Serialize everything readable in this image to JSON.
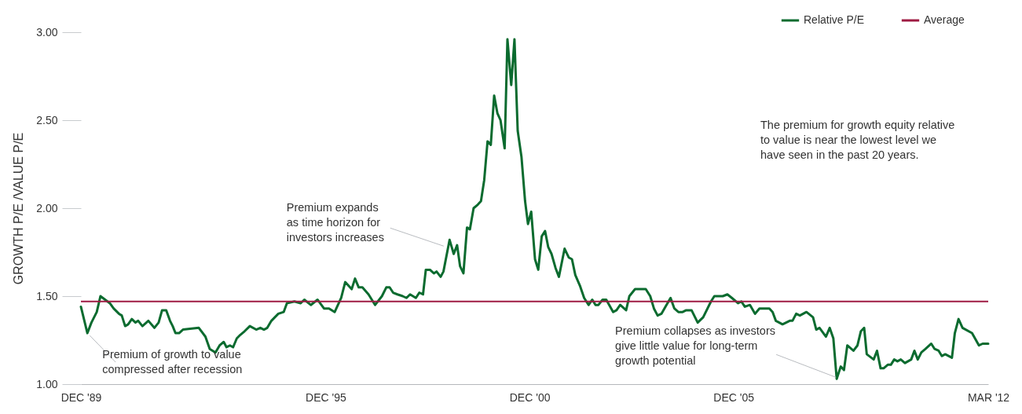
{
  "chart_data": {
    "type": "line",
    "ylabel": "GROWTH P/E /VALUE P/E",
    "x": [
      "1989-12-01",
      "1990-01-28",
      "1990-03-05",
      "1990-04-22",
      "1990-05-25",
      "1990-08-17",
      "1990-09-20",
      "1990-11-07",
      "1990-12-02",
      "1991-01-01",
      "1991-01-28",
      "1991-03-02",
      "1991-04-04",
      "1991-04-28",
      "1991-06-05",
      "1991-07-28",
      "1991-09-20",
      "1991-10-28",
      "1991-11-28",
      "1992-01-04",
      "1992-02-07",
      "1992-03-02",
      "1992-03-27",
      "1992-04-28",
      "1992-06-02",
      "1992-10-22",
      "1992-12-20",
      "1993-01-28",
      "1993-03-20",
      "1993-04-26",
      "1993-06-02",
      "1993-06-27",
      "1993-07-28",
      "1993-08-25",
      "1993-09-27",
      "1993-10-28",
      "1993-12-05",
      "1994-01-22",
      "1994-03-20",
      "1994-04-26",
      "1994-05-28",
      "1994-06-27",
      "1994-08-03",
      "1994-10-04",
      "1994-11-21",
      "1994-12-20",
      "1995-02-25",
      "1995-04-22",
      "1995-05-25",
      "1995-07-22",
      "1995-09-20",
      "1995-11-17",
      "1996-01-01",
      "1996-02-21",
      "1996-04-19",
      "1996-05-25",
      "1996-07-22",
      "1996-08-21",
      "1996-09-23",
      "1996-10-26",
      "1996-12-20",
      "1997-02-17",
      "1997-04-19",
      "1997-05-28",
      "1997-06-27",
      "1997-07-28",
      "1997-09-05",
      "1997-10-22",
      "1997-11-25",
      "1997-12-27",
      "1998-02-17",
      "1998-03-20",
      "1998-04-22",
      "1998-05-17",
      "1998-06-23",
      "1998-07-28",
      "1998-08-21",
      "1998-09-27",
      "1998-10-22",
      "1998-12-16",
      "1999-01-22",
      "1999-02-21",
      "1999-03-20",
      "1999-04-19",
      "1999-05-21",
      "1999-06-16",
      "1999-07-19",
      "1999-08-25",
      "1999-09-23",
      "1999-10-22",
      "1999-11-21",
      "1999-12-20",
      "2000-01-19",
      "2000-02-17",
      "2000-03-16",
      "2000-04-22",
      "2000-05-17",
      "2000-06-20",
      "2000-07-19",
      "2000-08-17",
      "2000-09-20",
      "2000-10-22",
      "2000-11-17",
      "2000-12-16",
      "2001-01-19",
      "2001-02-17",
      "2001-03-20",
      "2001-04-19",
      "2001-05-17",
      "2001-06-16",
      "2001-07-22",
      "2001-08-21",
      "2001-10-11",
      "2001-11-17",
      "2001-12-16",
      "2002-01-15",
      "2002-02-25",
      "2002-04-04",
      "2002-05-14",
      "2002-06-16",
      "2002-07-15",
      "2002-08-10",
      "2002-09-16",
      "2002-10-19",
      "2002-12-20",
      "2003-01-19",
      "2003-02-21",
      "2003-04-15",
      "2003-05-14",
      "2003-07-04",
      "2003-10-08",
      "2003-11-17",
      "2003-12-20",
      "2004-01-22",
      "2004-02-25",
      "2004-04-01",
      "2004-05-17",
      "2004-06-20",
      "2004-07-26",
      "2004-09-02",
      "2004-10-04",
      "2004-11-21",
      "2005-01-15",
      "2005-03-05",
      "2005-05-14",
      "2005-06-13",
      "2005-08-28",
      "2005-10-08",
      "2005-11-17",
      "2006-01-11",
      "2006-02-10",
      "2006-03-13",
      "2006-04-28",
      "2006-06-13",
      "2006-07-22",
      "2006-10-19",
      "2006-11-17",
      "2006-12-16",
      "2007-02-14",
      "2007-04-19",
      "2007-05-14",
      "2007-06-16",
      "2007-07-19",
      "2007-09-16",
      "2007-11-14",
      "2007-12-13",
      "2008-01-11",
      "2008-03-09",
      "2008-04-11",
      "2008-05-14",
      "2008-06-13",
      "2008-07-19",
      "2008-08-17",
      "2008-09-16",
      "2008-11-10",
      "2008-12-16",
      "2009-01-15",
      "2009-02-14",
      "2009-03-09",
      "2009-05-10",
      "2009-06-09",
      "2009-07-11",
      "2009-08-07",
      "2009-09-13",
      "2009-10-11",
      "2009-11-10",
      "2009-12-09",
      "2010-01-08",
      "2010-02-14",
      "2010-04-11",
      "2010-05-10",
      "2010-06-09",
      "2010-07-11",
      "2010-08-17",
      "2010-10-08",
      "2010-11-07",
      "2010-12-13",
      "2011-01-11",
      "2011-02-10",
      "2011-04-11",
      "2011-05-07",
      "2011-06-09",
      "2011-07-15",
      "2011-10-08",
      "2011-12-09",
      "2012-01-11",
      "2012-03-01"
    ],
    "series": [
      {
        "name": "Relative P/E",
        "color": "#0b6b2f",
        "values": [
          1.44,
          1.29,
          1.35,
          1.41,
          1.5,
          1.46,
          1.43,
          1.4,
          1.39,
          1.33,
          1.34,
          1.37,
          1.35,
          1.36,
          1.33,
          1.36,
          1.32,
          1.35,
          1.42,
          1.42,
          1.36,
          1.33,
          1.29,
          1.29,
          1.31,
          1.32,
          1.27,
          1.2,
          1.18,
          1.22,
          1.24,
          1.21,
          1.22,
          1.21,
          1.26,
          1.28,
          1.3,
          1.33,
          1.31,
          1.32,
          1.31,
          1.32,
          1.36,
          1.4,
          1.41,
          1.46,
          1.47,
          1.46,
          1.48,
          1.45,
          1.48,
          1.43,
          1.43,
          1.41,
          1.49,
          1.58,
          1.54,
          1.6,
          1.55,
          1.55,
          1.51,
          1.45,
          1.5,
          1.55,
          1.55,
          1.52,
          1.51,
          1.5,
          1.49,
          1.51,
          1.49,
          1.52,
          1.51,
          1.65,
          1.65,
          1.63,
          1.64,
          1.61,
          1.64,
          1.82,
          1.74,
          1.79,
          1.67,
          1.63,
          1.89,
          1.88,
          2.0,
          2.02,
          2.04,
          2.16,
          2.38,
          2.36,
          2.64,
          2.54,
          2.5,
          2.34,
          2.96,
          2.7,
          2.96,
          2.44,
          2.29,
          2.04,
          1.91,
          1.98,
          1.71,
          1.65,
          1.84,
          1.87,
          1.78,
          1.74,
          1.66,
          1.61,
          1.77,
          1.72,
          1.71,
          1.62,
          1.56,
          1.49,
          1.45,
          1.48,
          1.45,
          1.45,
          1.48,
          1.48,
          1.41,
          1.42,
          1.45,
          1.42,
          1.5,
          1.54,
          1.54,
          1.5,
          1.43,
          1.39,
          1.4,
          1.44,
          1.49,
          1.43,
          1.41,
          1.41,
          1.42,
          1.42,
          1.35,
          1.38,
          1.47,
          1.5,
          1.5,
          1.51,
          1.49,
          1.46,
          1.47,
          1.44,
          1.45,
          1.4,
          1.43,
          1.43,
          1.41,
          1.36,
          1.34,
          1.36,
          1.36,
          1.4,
          1.39,
          1.41,
          1.38,
          1.31,
          1.32,
          1.27,
          1.32,
          1.26,
          1.03,
          1.1,
          1.08,
          1.22,
          1.19,
          1.22,
          1.3,
          1.32,
          1.17,
          1.14,
          1.19,
          1.09,
          1.09,
          1.11,
          1.11,
          1.14,
          1.13,
          1.14,
          1.12,
          1.14,
          1.19,
          1.14,
          1.18,
          1.2,
          1.23,
          1.2,
          1.19,
          1.16,
          1.17,
          1.15,
          1.29,
          1.37,
          1.32,
          1.29,
          1.22,
          1.23,
          1.23
        ]
      }
    ],
    "ref_lines": [
      {
        "axis": "y",
        "value": 1.47,
        "label": "Average",
        "color": "#9e1a42"
      }
    ],
    "xlim": [
      "1989-12-01",
      "2012-03-01"
    ],
    "xticks": [
      {
        "value": "1989-12-01",
        "label": "DEC '89"
      },
      {
        "value": "1995-12-01",
        "label": "DEC '95"
      },
      {
        "value": "2000-12-01",
        "label": "DEC '00"
      },
      {
        "value": "2005-12-01",
        "label": "DEC '05"
      },
      {
        "value": "2012-03-01",
        "label": "MAR '12"
      }
    ],
    "ylim": [
      1,
      3
    ],
    "yticks": [
      {
        "value": 1,
        "label": "1.00"
      },
      {
        "value": 1.5,
        "label": "1.50"
      },
      {
        "value": 2,
        "label": "2.00"
      },
      {
        "value": 2.5,
        "label": "2.50"
      },
      {
        "value": 3,
        "label": "3.00"
      }
    ],
    "annotations": [
      {
        "text": "Premium of growth to value\ncompressed after recession",
        "x": "1990-01-28",
        "y": 1.29
      },
      {
        "text": "Premium expands\nas time horizon for\ninvestors increases",
        "x": "1998-11-07",
        "y": 1.78
      },
      {
        "text": "Premium collapses as investors\ngive little value for long-term\ngrowth potential",
        "x": "2008-06-13",
        "y": 1.03
      },
      "The premium for growth equity relative\nto value is near the lowest level we\nhave seen in the past 20 years."
    ],
    "legend": "top right",
    "marker": "none",
    "line_style": "solid"
  }
}
